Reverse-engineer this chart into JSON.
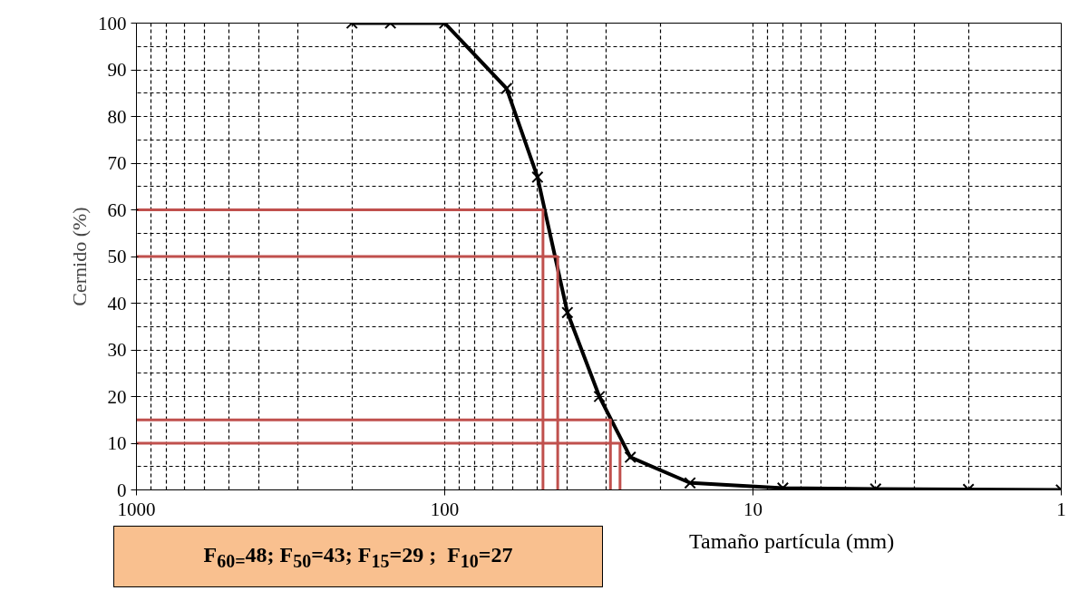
{
  "chart_data": {
    "type": "line",
    "xlabel": "Tamaño partícula (mm)",
    "ylabel": "Cernido (%)",
    "log": "x",
    "xlim": [
      1000,
      1
    ],
    "xticks": [
      1000,
      100,
      10,
      1
    ],
    "ylim": [
      0,
      100
    ],
    "yticks": [
      0,
      10,
      20,
      30,
      40,
      50,
      60,
      70,
      80,
      90,
      100
    ],
    "grid": true,
    "marker": "cross",
    "line_style": "solid",
    "series": [
      {
        "color": "#000000",
        "x": [
          200,
          150,
          100,
          63,
          50,
          40,
          31.5,
          25,
          16,
          8,
          4,
          2,
          1
        ],
        "values": [
          100,
          100,
          100,
          86,
          67,
          38,
          20,
          7,
          1.5,
          0.4,
          0.2,
          0.1,
          0
        ]
      },
      {
        "color": "#c0504d",
        "marker": "none",
        "x": [
          1000,
          48,
          48
        ],
        "values": [
          60,
          60,
          0
        ]
      },
      {
        "color": "#c0504d",
        "marker": "none",
        "x": [
          1000,
          43,
          43
        ],
        "values": [
          50,
          50,
          0
        ]
      },
      {
        "color": "#c0504d",
        "marker": "none",
        "x": [
          1000,
          29,
          29
        ],
        "values": [
          15,
          15,
          0
        ]
      },
      {
        "color": "#c0504d",
        "marker": "none",
        "x": [
          1000,
          27,
          27
        ],
        "values": [
          10,
          10,
          0
        ]
      }
    ],
    "annotations": [
      "F$_{60=}$48; F$_{50}$=43; F$_{15}$=29 ;  F$_{10}$=27"
    ]
  }
}
